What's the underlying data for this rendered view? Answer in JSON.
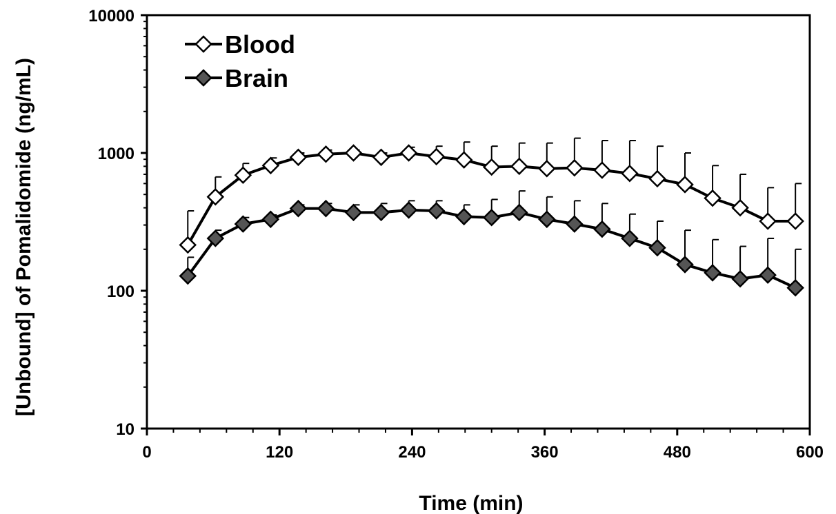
{
  "chart_data": {
    "type": "line",
    "title": "",
    "xlabel": "Time (min)",
    "ylabel": "[Unbound] of Pomalidomide (ng/mL)",
    "xlim": [
      0,
      600
    ],
    "ylim": [
      10,
      10000
    ],
    "yscale": "log",
    "xticks": [
      0,
      120,
      240,
      360,
      480,
      600
    ],
    "yticks": [
      10,
      100,
      1000,
      10000
    ],
    "xtick_labels": [
      "0",
      "120",
      "240",
      "360",
      "480",
      "600"
    ],
    "ytick_labels": [
      "10",
      "100",
      "1000",
      "10000"
    ],
    "grid": false,
    "legend_position": "top-left",
    "series": [
      {
        "name": "Blood",
        "marker": "open-diamond",
        "color": "#000000",
        "fill": "#ffffff",
        "x": [
          37,
          62,
          87,
          112,
          137,
          162,
          187,
          212,
          237,
          262,
          287,
          312,
          337,
          362,
          387,
          412,
          437,
          462,
          487,
          512,
          537,
          562,
          587
        ],
        "y": [
          215,
          480,
          690,
          810,
          930,
          980,
          1000,
          930,
          1000,
          940,
          890,
          790,
          800,
          770,
          780,
          750,
          710,
          650,
          590,
          470,
          400,
          320,
          320
        ],
        "error_upper": [
          380,
          670,
          840,
          920,
          1000,
          1050,
          1050,
          1000,
          1100,
          1120,
          1200,
          1120,
          1180,
          1180,
          1280,
          1230,
          1230,
          1120,
          1000,
          810,
          700,
          560,
          600
        ]
      },
      {
        "name": "Brain",
        "marker": "filled-diamond",
        "color": "#000000",
        "fill": "#555555",
        "x": [
          37,
          62,
          87,
          112,
          137,
          162,
          187,
          212,
          237,
          262,
          287,
          312,
          337,
          362,
          387,
          412,
          437,
          462,
          487,
          512,
          537,
          562,
          587
        ],
        "y": [
          128,
          240,
          305,
          330,
          395,
          395,
          370,
          370,
          385,
          380,
          345,
          340,
          370,
          330,
          305,
          280,
          240,
          205,
          155,
          135,
          122,
          130,
          105
        ],
        "error_upper": [
          175,
          275,
          340,
          355,
          420,
          430,
          420,
          430,
          450,
          450,
          420,
          460,
          530,
          480,
          450,
          430,
          360,
          320,
          275,
          235,
          210,
          240,
          200
        ]
      }
    ]
  }
}
